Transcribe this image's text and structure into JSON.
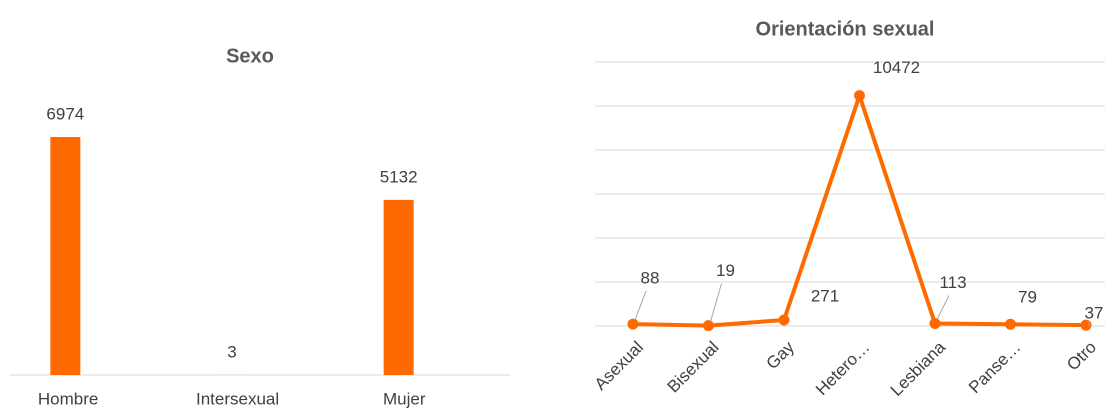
{
  "chart_data": [
    {
      "type": "bar",
      "title": "Sexo",
      "categories": [
        "Hombre",
        "Intersexual",
        "Mujer"
      ],
      "values": [
        6974,
        3,
        5132
      ],
      "color": "#ff6a00",
      "ylim": [
        0,
        8000
      ]
    },
    {
      "type": "line",
      "title": "Orientación sexual",
      "categories": [
        "Asexual",
        "Bisexual",
        "Gay",
        "Hetero…",
        "Lesbiana",
        "Panse…",
        "Otro"
      ],
      "values": [
        88,
        19,
        271,
        10472,
        113,
        79,
        37
      ],
      "color": "#ff6a00",
      "ylim": [
        0,
        12000
      ],
      "yticks": [
        0,
        2000,
        4000,
        6000,
        8000,
        10000,
        12000
      ],
      "grid": true
    }
  ]
}
